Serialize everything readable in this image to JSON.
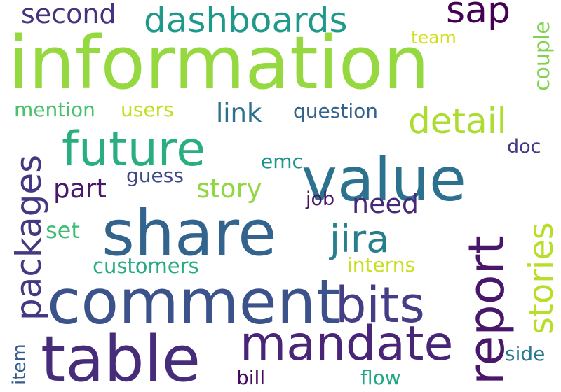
{
  "background": "#ffffff",
  "words": [
    {
      "id": "information",
      "text": "information",
      "color": "#95d840"
    },
    {
      "id": "share",
      "text": "share",
      "color": "#32648e"
    },
    {
      "id": "comment",
      "text": "comment",
      "color": "#3b528b"
    },
    {
      "id": "value",
      "text": "value",
      "color": "#2c728e"
    },
    {
      "id": "table",
      "text": "table",
      "color": "#472c7a"
    },
    {
      "id": "future",
      "text": "future",
      "color": "#29af7f"
    },
    {
      "id": "report",
      "text": "report",
      "color": "#481769"
    },
    {
      "id": "bits",
      "text": "bits",
      "color": "#433e85"
    },
    {
      "id": "mandate",
      "text": "mandate",
      "color": "#482576"
    },
    {
      "id": "dashboards",
      "text": "dashboards",
      "color": "#1f9a8a"
    },
    {
      "id": "packages",
      "text": "packages",
      "color": "#453882"
    },
    {
      "id": "stories",
      "text": "stories",
      "color": "#b8de29"
    },
    {
      "id": "jira",
      "text": "jira",
      "color": "#277f8e"
    },
    {
      "id": "detail",
      "text": "detail",
      "color": "#addc30"
    },
    {
      "id": "sap",
      "text": "sap",
      "color": "#440154"
    },
    {
      "id": "second",
      "text": "second",
      "color": "#46327e"
    },
    {
      "id": "link",
      "text": "link",
      "color": "#2d718e"
    },
    {
      "id": "part",
      "text": "part",
      "color": "#48186a"
    },
    {
      "id": "story",
      "text": "story",
      "color": "#90d743"
    },
    {
      "id": "need",
      "text": "need",
      "color": "#482878"
    },
    {
      "id": "couple",
      "text": "couple",
      "color": "#7fd34e"
    },
    {
      "id": "set",
      "text": "set",
      "color": "#3dbc74"
    },
    {
      "id": "question",
      "text": "question",
      "color": "#33638d"
    },
    {
      "id": "users",
      "text": "users",
      "color": "#c2df23"
    },
    {
      "id": "mention",
      "text": "mention",
      "color": "#4ac16d"
    },
    {
      "id": "customers",
      "text": "customers",
      "color": "#25ab82"
    },
    {
      "id": "interns",
      "text": "interns",
      "color": "#c8e020"
    },
    {
      "id": "guess",
      "text": "guess",
      "color": "#3f4889"
    },
    {
      "id": "emc",
      "text": "emc",
      "color": "#1f948c"
    },
    {
      "id": "doc",
      "text": "doc",
      "color": "#443a83"
    },
    {
      "id": "team",
      "text": "team",
      "color": "#d0e11c"
    },
    {
      "id": "job",
      "text": "job",
      "color": "#481467"
    },
    {
      "id": "item",
      "text": "item",
      "color": "#365c8d"
    },
    {
      "id": "bill",
      "text": "bill",
      "color": "#46085c"
    },
    {
      "id": "flow",
      "text": "flow",
      "color": "#22a884"
    },
    {
      "id": "side",
      "text": "side",
      "color": "#2a788e"
    }
  ]
}
